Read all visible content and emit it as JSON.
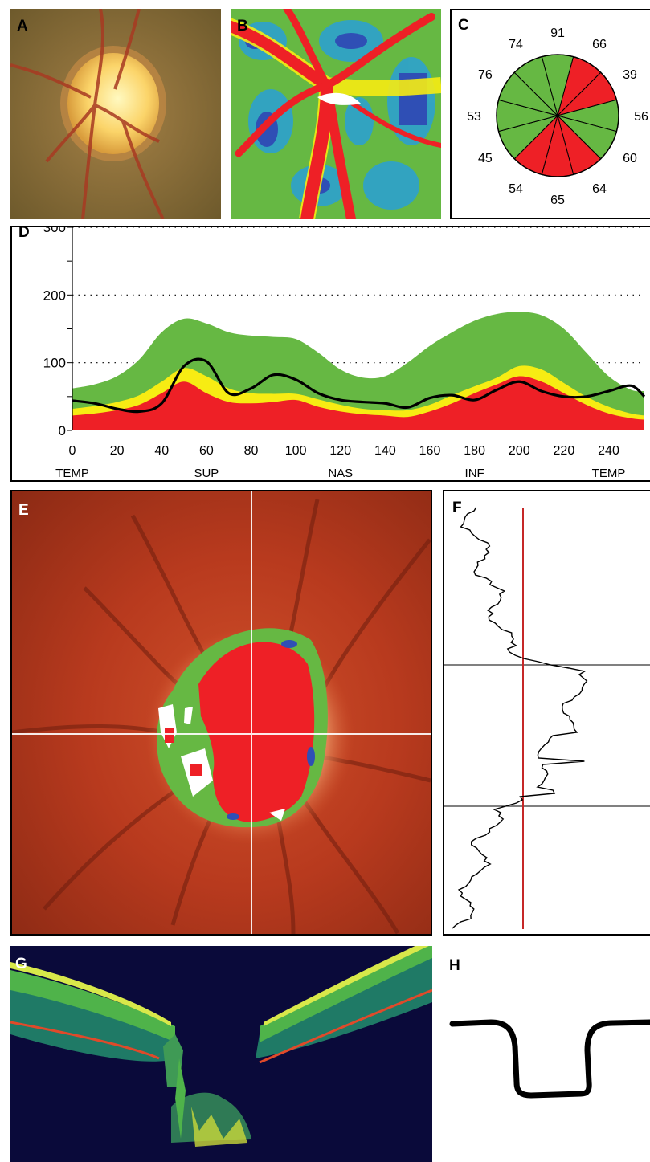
{
  "panels": {
    "a": {
      "label": "A"
    },
    "b": {
      "label": "B"
    },
    "c": {
      "label": "C"
    },
    "d": {
      "label": "D"
    },
    "e": {
      "label": "E"
    },
    "f": {
      "label": "F"
    },
    "g": {
      "label": "G"
    },
    "h": {
      "label": "H"
    }
  },
  "colors": {
    "green": "#66b843",
    "red": "#ee2026",
    "yellow": "#f7ec13",
    "blue": "#2f4fb5",
    "white": "#ffffff",
    "fundus_bg": "#b83a1e",
    "oct_bg": "#0a0a3a"
  },
  "chart_data": [
    {
      "type": "pie",
      "panel": "C",
      "values": [
        91,
        66,
        39,
        56,
        60,
        64,
        65,
        54,
        45,
        53,
        76,
        74
      ],
      "categories": [
        "91",
        "66",
        "39",
        "56",
        "60",
        "64",
        "65",
        "54",
        "45",
        "53",
        "76",
        "74"
      ],
      "colors": [
        "green",
        "red",
        "red",
        "green",
        "green",
        "red",
        "red",
        "red",
        "green",
        "green",
        "green",
        "green"
      ]
    },
    {
      "type": "area",
      "panel": "D",
      "x": [
        0,
        10,
        20,
        30,
        40,
        50,
        60,
        70,
        80,
        90,
        100,
        110,
        120,
        130,
        140,
        150,
        160,
        170,
        180,
        190,
        200,
        210,
        220,
        230,
        240,
        250,
        256
      ],
      "series": [
        {
          "name": "",
          "color": "green",
          "values": [
            62,
            68,
            80,
            105,
            145,
            165,
            158,
            145,
            140,
            138,
            135,
            115,
            90,
            78,
            80,
            100,
            125,
            145,
            162,
            172,
            175,
            170,
            150,
            115,
            80,
            60,
            58
          ]
        },
        {
          "name": "",
          "color": "yellow",
          "values": [
            32,
            36,
            42,
            52,
            72,
            92,
            80,
            62,
            55,
            54,
            54,
            46,
            38,
            32,
            30,
            30,
            38,
            52,
            65,
            78,
            95,
            90,
            70,
            50,
            35,
            25,
            22
          ]
        },
        {
          "name": "",
          "color": "red",
          "values": [
            22,
            25,
            30,
            38,
            55,
            72,
            55,
            42,
            40,
            42,
            45,
            35,
            28,
            24,
            22,
            20,
            28,
            40,
            55,
            68,
            80,
            72,
            55,
            38,
            25,
            18,
            16
          ]
        },
        {
          "name": "",
          "color": "black",
          "values": [
            44,
            40,
            32,
            28,
            40,
            95,
            102,
            55,
            62,
            82,
            75,
            55,
            45,
            42,
            40,
            34,
            48,
            52,
            45,
            60,
            72,
            58,
            50,
            50,
            58,
            66,
            50
          ]
        }
      ],
      "ylim": [
        0,
        300
      ],
      "xlim": [
        0,
        256
      ],
      "yticks": [
        0,
        100,
        200,
        300
      ],
      "xticks": [
        0,
        20,
        40,
        60,
        80,
        100,
        120,
        140,
        160,
        180,
        200,
        220,
        240
      ],
      "region_labels": [
        "TEMP",
        "SUP",
        "NAS",
        "INF",
        "TEMP"
      ],
      "grid": "dotted horizontal at 100, 200, 300"
    }
  ]
}
